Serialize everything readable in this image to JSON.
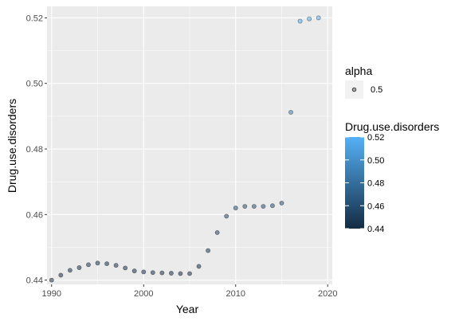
{
  "chart_data": {
    "type": "scatter",
    "title": "",
    "xlabel": "Year",
    "ylabel": "Drug.use.disorders",
    "xlim": [
      1989.5,
      2020.5
    ],
    "ylim": [
      0.4387,
      0.5235
    ],
    "x_ticks": [
      1990,
      2000,
      2010,
      2020
    ],
    "y_ticks": [
      0.44,
      0.46,
      0.48,
      0.5,
      0.52
    ],
    "x_tick_labels": [
      "1990",
      "2000",
      "2010",
      "2020"
    ],
    "y_tick_labels": [
      "0.44",
      "0.46",
      "0.48",
      "0.50",
      "0.52"
    ],
    "grid": true,
    "panel_background": "#ebebeb",
    "series": [
      {
        "x": [
          1990,
          1991,
          1992,
          1993,
          1994,
          1995,
          1996,
          1997,
          1998,
          1999,
          2000,
          2001,
          2002,
          2003,
          2004,
          2005,
          2006,
          2007,
          2008,
          2009,
          2010,
          2011,
          2012,
          2013,
          2014,
          2015,
          2016,
          2017,
          2018,
          2019
        ],
        "y": [
          0.44,
          0.4415,
          0.443,
          0.4438,
          0.4447,
          0.4452,
          0.445,
          0.4445,
          0.4437,
          0.4428,
          0.4425,
          0.4423,
          0.4422,
          0.4421,
          0.442,
          0.442,
          0.4442,
          0.449,
          0.4545,
          0.4595,
          0.462,
          0.4625,
          0.4625,
          0.4625,
          0.4627,
          0.4635,
          0.4912,
          0.519,
          0.5197,
          0.52
        ]
      }
    ],
    "legends": [
      {
        "title": "alpha",
        "label": "0.5",
        "placement": "right"
      },
      {
        "title": "Drug.use.disorders",
        "type": "colorbar",
        "tick_labels": [
          "0.52",
          "0.50",
          "0.48",
          "0.46",
          "0.44"
        ],
        "ticks": [
          0.52,
          0.5,
          0.48,
          0.46,
          0.44
        ],
        "range": [
          0.44,
          0.52
        ],
        "colors": [
          "#132b43",
          "#56b1f7"
        ],
        "placement": "right"
      }
    ]
  }
}
